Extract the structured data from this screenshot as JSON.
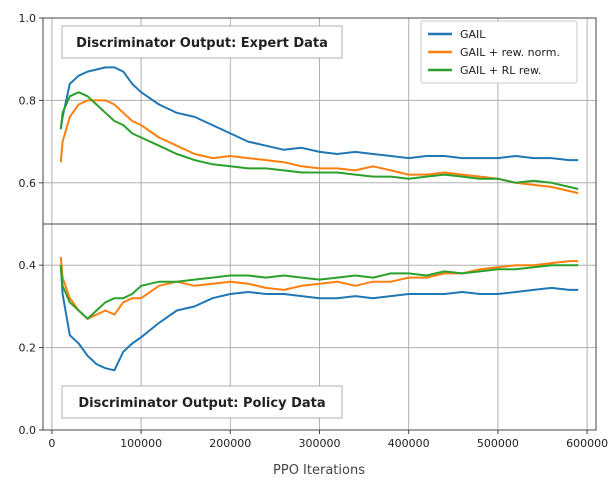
{
  "chart_data": {
    "type": "line",
    "xlabel": "PPO Iterations",
    "xlim": [
      -10000,
      610000
    ],
    "x_ticks": [
      0,
      100000,
      200000,
      300000,
      400000,
      500000,
      600000
    ],
    "x_tick_labels": [
      "0",
      "100000",
      "200000",
      "300000",
      "400000",
      "500000",
      "600000"
    ],
    "grid": true,
    "legend_position": "top-right",
    "legend": [
      {
        "name": "GAIL",
        "color": "#1f77b4"
      },
      {
        "name": "GAIL + rew. norm.",
        "color": "#ff7f0e"
      },
      {
        "name": "GAIL + RL rew.",
        "color": "#2ca02c"
      }
    ],
    "panels": [
      {
        "title": "Discriminator Output: Expert Data",
        "ylim": [
          0.5,
          1.0
        ],
        "y_ticks": [
          0.6,
          0.8,
          1.0
        ],
        "y_tick_labels": [
          "0.6",
          "0.8",
          "1.0"
        ],
        "x": [
          10000,
          12000,
          20000,
          30000,
          40000,
          50000,
          60000,
          70000,
          80000,
          90000,
          100000,
          120000,
          140000,
          160000,
          180000,
          200000,
          220000,
          240000,
          260000,
          280000,
          300000,
          320000,
          340000,
          360000,
          380000,
          400000,
          420000,
          440000,
          460000,
          480000,
          500000,
          520000,
          540000,
          560000,
          580000,
          590000
        ],
        "series": [
          {
            "name": "GAIL",
            "color": "#1f77b4",
            "values": [
              0.73,
              0.76,
              0.84,
              0.86,
              0.87,
              0.875,
              0.88,
              0.88,
              0.87,
              0.84,
              0.82,
              0.79,
              0.77,
              0.76,
              0.74,
              0.72,
              0.7,
              0.69,
              0.68,
              0.685,
              0.675,
              0.67,
              0.675,
              0.67,
              0.665,
              0.66,
              0.665,
              0.665,
              0.66,
              0.66,
              0.66,
              0.665,
              0.66,
              0.66,
              0.655,
              0.655
            ]
          },
          {
            "name": "GAIL + rew. norm.",
            "color": "#ff7f0e",
            "values": [
              0.65,
              0.7,
              0.76,
              0.79,
              0.8,
              0.8,
              0.8,
              0.79,
              0.77,
              0.75,
              0.74,
              0.71,
              0.69,
              0.67,
              0.66,
              0.665,
              0.66,
              0.655,
              0.65,
              0.64,
              0.635,
              0.635,
              0.63,
              0.64,
              0.63,
              0.62,
              0.62,
              0.625,
              0.62,
              0.615,
              0.61,
              0.6,
              0.595,
              0.59,
              0.58,
              0.575
            ]
          },
          {
            "name": "GAIL + RL rew.",
            "color": "#2ca02c",
            "values": [
              0.73,
              0.77,
              0.81,
              0.82,
              0.81,
              0.79,
              0.77,
              0.75,
              0.74,
              0.72,
              0.71,
              0.69,
              0.67,
              0.655,
              0.645,
              0.64,
              0.635,
              0.635,
              0.63,
              0.625,
              0.625,
              0.625,
              0.62,
              0.615,
              0.615,
              0.61,
              0.615,
              0.62,
              0.615,
              0.61,
              0.61,
              0.6,
              0.605,
              0.6,
              0.59,
              0.585
            ]
          }
        ]
      },
      {
        "title": "Discriminator Output: Policy Data",
        "ylim": [
          0.0,
          0.5
        ],
        "y_ticks": [
          0.0,
          0.2,
          0.4
        ],
        "y_tick_labels": [
          "0.0",
          "0.2",
          "0.4"
        ],
        "x": [
          10000,
          12000,
          20000,
          30000,
          40000,
          50000,
          60000,
          70000,
          80000,
          90000,
          100000,
          120000,
          140000,
          160000,
          180000,
          200000,
          220000,
          240000,
          260000,
          280000,
          300000,
          320000,
          340000,
          360000,
          380000,
          400000,
          420000,
          440000,
          460000,
          480000,
          500000,
          520000,
          540000,
          560000,
          580000,
          590000
        ],
        "series": [
          {
            "name": "GAIL",
            "color": "#1f77b4",
            "values": [
              0.4,
              0.33,
              0.23,
              0.21,
              0.18,
              0.16,
              0.15,
              0.145,
              0.19,
              0.21,
              0.225,
              0.26,
              0.29,
              0.3,
              0.32,
              0.33,
              0.335,
              0.33,
              0.33,
              0.325,
              0.32,
              0.32,
              0.325,
              0.32,
              0.325,
              0.33,
              0.33,
              0.33,
              0.335,
              0.33,
              0.33,
              0.335,
              0.34,
              0.345,
              0.34,
              0.34
            ]
          },
          {
            "name": "GAIL + rew. norm.",
            "color": "#ff7f0e",
            "values": [
              0.42,
              0.37,
              0.32,
              0.29,
              0.27,
              0.28,
              0.29,
              0.28,
              0.31,
              0.32,
              0.32,
              0.35,
              0.36,
              0.35,
              0.355,
              0.36,
              0.355,
              0.345,
              0.34,
              0.35,
              0.355,
              0.36,
              0.35,
              0.36,
              0.36,
              0.37,
              0.37,
              0.38,
              0.38,
              0.39,
              0.395,
              0.4,
              0.4,
              0.405,
              0.41,
              0.41
            ]
          },
          {
            "name": "GAIL + RL rew.",
            "color": "#2ca02c",
            "values": [
              0.4,
              0.35,
              0.31,
              0.29,
              0.27,
              0.29,
              0.31,
              0.32,
              0.32,
              0.33,
              0.35,
              0.36,
              0.36,
              0.365,
              0.37,
              0.375,
              0.375,
              0.37,
              0.375,
              0.37,
              0.365,
              0.37,
              0.375,
              0.37,
              0.38,
              0.38,
              0.375,
              0.385,
              0.38,
              0.385,
              0.39,
              0.39,
              0.395,
              0.4,
              0.4,
              0.4
            ]
          }
        ]
      }
    ]
  }
}
